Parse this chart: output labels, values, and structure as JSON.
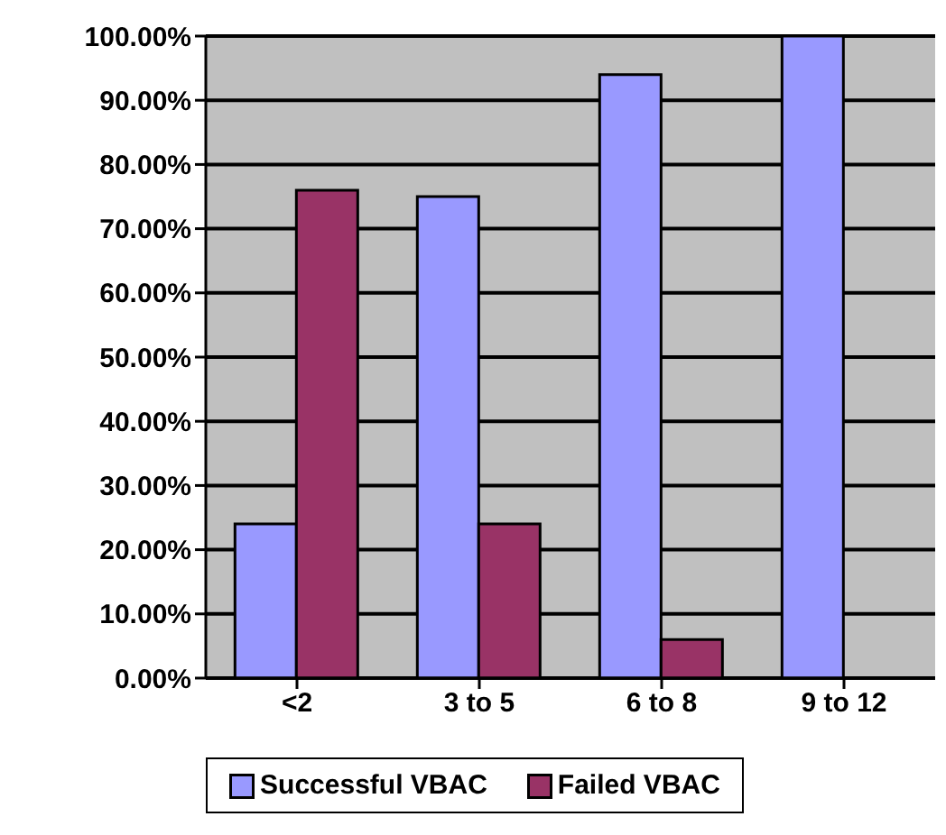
{
  "chart_data": {
    "type": "bar",
    "categories": [
      "<2",
      "3 to 5",
      "6 to 8",
      "9 to 12"
    ],
    "series": [
      {
        "name": "Successful VBAC",
        "color": "#9999ff",
        "values": [
          24,
          75,
          94,
          100
        ]
      },
      {
        "name": "Failed VBAC",
        "color": "#993366",
        "values": [
          76,
          24,
          6,
          0
        ]
      }
    ],
    "ylim": [
      0,
      100
    ],
    "yticks": [
      {
        "value": 0,
        "label": "0.00%"
      },
      {
        "value": 10,
        "label": "10.00%"
      },
      {
        "value": 20,
        "label": "20.00%"
      },
      {
        "value": 30,
        "label": "30.00%"
      },
      {
        "value": 40,
        "label": "40.00%"
      },
      {
        "value": 50,
        "label": "50.00%"
      },
      {
        "value": 60,
        "label": "60.00%"
      },
      {
        "value": 70,
        "label": "70.00%"
      },
      {
        "value": 80,
        "label": "80.00%"
      },
      {
        "value": 90,
        "label": "90.00%"
      },
      {
        "value": 100,
        "label": "100.00%"
      }
    ],
    "grid": "y",
    "legend": "bottom"
  }
}
